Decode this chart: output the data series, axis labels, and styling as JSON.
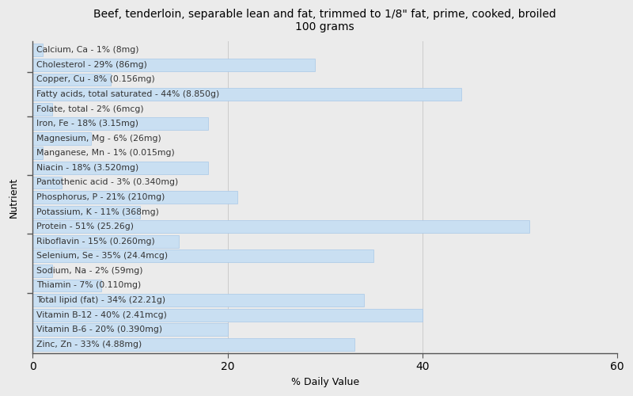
{
  "title": "Beef, tenderloin, separable lean and fat, trimmed to 1/8\" fat, prime, cooked, broiled\n100 grams",
  "xlabel": "% Daily Value",
  "ylabel": "Nutrient",
  "xlim": [
    0,
    60
  ],
  "xticks": [
    0,
    20,
    40,
    60
  ],
  "bar_color": "#c9dff2",
  "bar_edge_color": "#a8c8e8",
  "background_color": "#ebebeb",
  "plot_bg_color": "#ebebeb",
  "text_color": "#333333",
  "nutrients": [
    {
      "label": "Calcium, Ca - 1% (8mg)",
      "value": 1
    },
    {
      "label": "Cholesterol - 29% (86mg)",
      "value": 29
    },
    {
      "label": "Copper, Cu - 8% (0.156mg)",
      "value": 8
    },
    {
      "label": "Fatty acids, total saturated - 44% (8.850g)",
      "value": 44
    },
    {
      "label": "Folate, total - 2% (6mcg)",
      "value": 2
    },
    {
      "label": "Iron, Fe - 18% (3.15mg)",
      "value": 18
    },
    {
      "label": "Magnesium, Mg - 6% (26mg)",
      "value": 6
    },
    {
      "label": "Manganese, Mn - 1% (0.015mg)",
      "value": 1
    },
    {
      "label": "Niacin - 18% (3.520mg)",
      "value": 18
    },
    {
      "label": "Pantothenic acid - 3% (0.340mg)",
      "value": 3
    },
    {
      "label": "Phosphorus, P - 21% (210mg)",
      "value": 21
    },
    {
      "label": "Potassium, K - 11% (368mg)",
      "value": 11
    },
    {
      "label": "Protein - 51% (25.26g)",
      "value": 51
    },
    {
      "label": "Riboflavin - 15% (0.260mg)",
      "value": 15
    },
    {
      "label": "Selenium, Se - 35% (24.4mcg)",
      "value": 35
    },
    {
      "label": "Sodium, Na - 2% (59mg)",
      "value": 2
    },
    {
      "label": "Thiamin - 7% (0.110mg)",
      "value": 7
    },
    {
      "label": "Total lipid (fat) - 34% (22.21g)",
      "value": 34
    },
    {
      "label": "Vitamin B-12 - 40% (2.41mcg)",
      "value": 40
    },
    {
      "label": "Vitamin B-6 - 20% (0.390mg)",
      "value": 20
    },
    {
      "label": "Zinc, Zn - 33% (4.88mg)",
      "value": 33
    }
  ],
  "ytick_positions": [
    3.5,
    7.5,
    11.5,
    15.5,
    18.5
  ],
  "bar_height": 0.85,
  "label_fontsize": 7.8,
  "title_fontsize": 10,
  "axis_label_fontsize": 9
}
